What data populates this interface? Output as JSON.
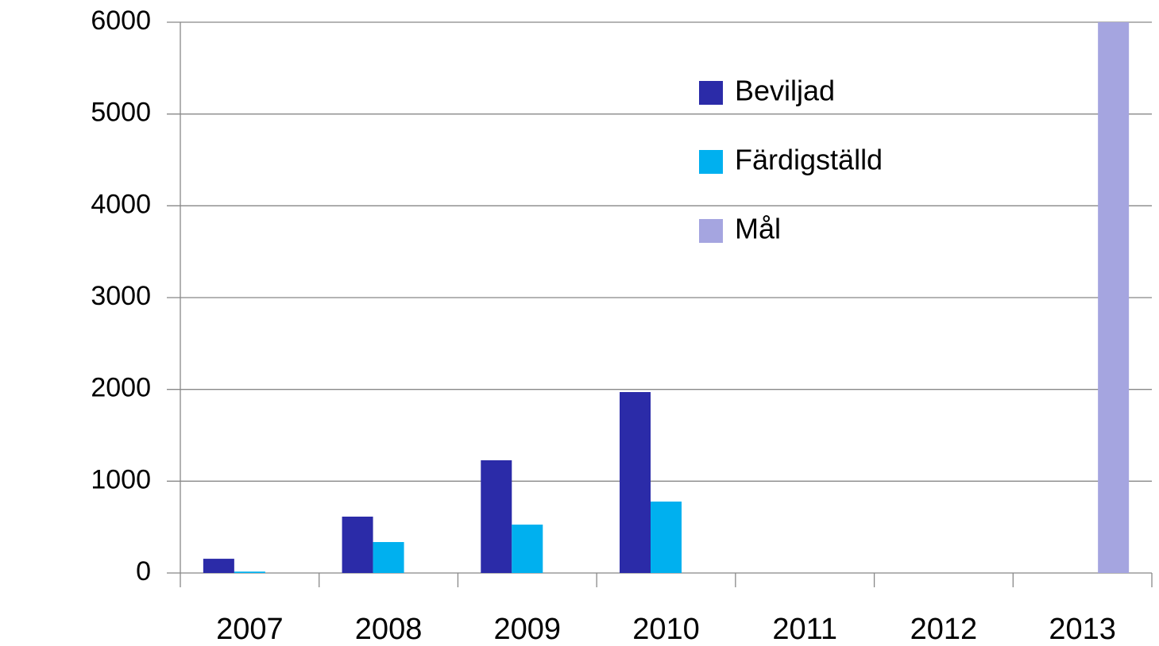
{
  "chart_data": {
    "type": "bar",
    "categories": [
      "2007",
      "2008",
      "2009",
      "2010",
      "2011",
      "2012",
      "2013"
    ],
    "series": [
      {
        "name": "Beviljad",
        "color": "#2b2ba8",
        "values": [
          155,
          614,
          1228,
          1971,
          null,
          null,
          null
        ]
      },
      {
        "name": "Färdigställd",
        "color": "#00b0ef",
        "values": [
          15,
          337,
          527,
          778,
          null,
          null,
          null
        ]
      },
      {
        "name": "Mål",
        "color": "#a5a5e0",
        "values": [
          null,
          null,
          null,
          null,
          null,
          null,
          6000
        ]
      }
    ],
    "ylim": [
      0,
      6000
    ],
    "yticks": [
      0,
      1000,
      2000,
      3000,
      4000,
      5000,
      6000
    ],
    "grid": true
  }
}
